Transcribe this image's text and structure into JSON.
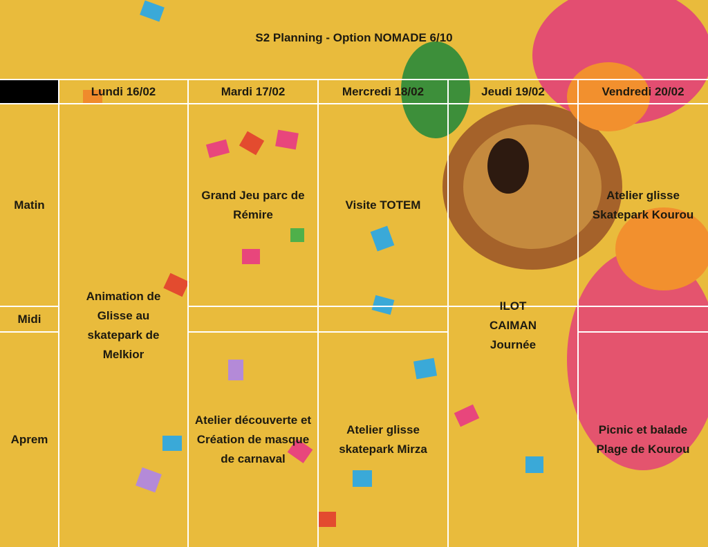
{
  "title": "S2 Planning - Option NOMADE 6/10",
  "table": {
    "days": [
      "Lundi 16/02",
      "Mardi 17/02",
      "Mercredi 18/02",
      "Jeudi 19/02",
      "Vendredi 20/02"
    ],
    "periods": [
      "Matin",
      "Midi",
      "Aprem"
    ],
    "activities": {
      "lundi": "Animation de Glisse au skatepark de Melkior",
      "mardi_matin": "Grand Jeu parc de Rémire",
      "mardi_aprem": "Atelier découverte et Création de masque de carnaval",
      "mercredi_matin": "Visite TOTEM",
      "mercredi_aprem": "Atelier glisse skatepark Mirza",
      "jeudi": "ILOT CAIMAN Journée",
      "vendredi_matin": "Atelier glisse Skatepark Kourou",
      "vendredi_aprem": "Picnic et balade Plage de Kourou"
    }
  }
}
